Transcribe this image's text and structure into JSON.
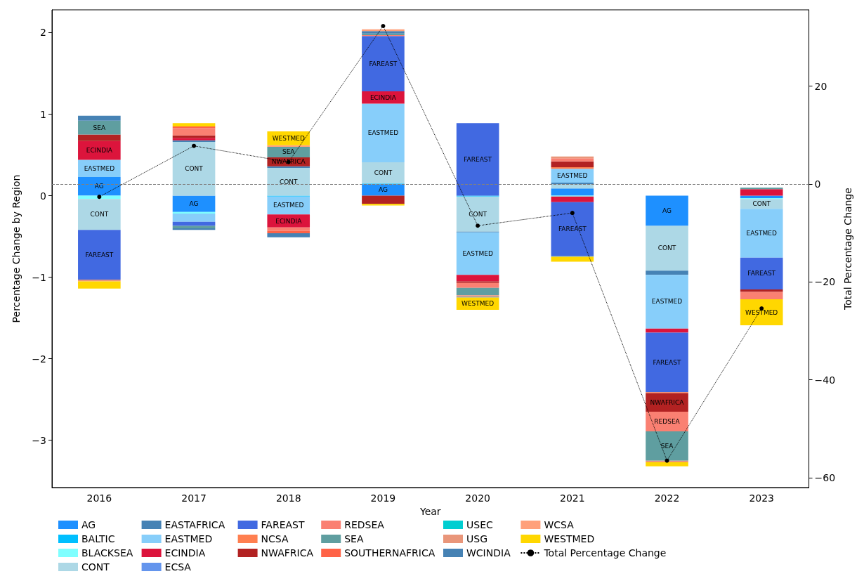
{
  "chart_data": {
    "type": "bar",
    "stacked": true,
    "xlabel": "Year",
    "ylabel": "Percentage Change by Region",
    "y2label": "Total Percentage Change",
    "categories": [
      "2016",
      "2017",
      "2018",
      "2019",
      "2020",
      "2021",
      "2022",
      "2023"
    ],
    "ylim": [
      -3.58,
      2.28
    ],
    "yticks": [
      {
        "value": -3,
        "label": "−3"
      },
      {
        "value": -2,
        "label": "−2"
      },
      {
        "value": -1,
        "label": "−1"
      },
      0,
      1,
      2
    ],
    "y2lim": [
      -62,
      35.6
    ],
    "y2ticks": [
      {
        "value": -60,
        "label": "−60"
      },
      {
        "value": -40,
        "label": "−40"
      },
      {
        "value": -20,
        "label": "−20"
      },
      0,
      20
    ],
    "grid": false,
    "legend": "bottom",
    "ref_lines": [
      {
        "axis": "y2",
        "value": 0,
        "color": "#808080",
        "line_style": "dashed"
      }
    ],
    "series": [
      {
        "name": "AG",
        "color": "#1e90ff",
        "values": [
          0.23,
          -0.2,
          null,
          0.14,
          null,
          0.09,
          -0.37,
          -0.03
        ],
        "value_labels": [
          "AG",
          "AG",
          null,
          "AG",
          null,
          null,
          "AG",
          null
        ]
      },
      {
        "name": "BALTIC",
        "color": "#00bfff",
        "values": [
          null,
          null,
          -0.01,
          0.01,
          -0.01,
          null,
          null,
          null
        ]
      },
      {
        "name": "BLACKSEA",
        "color": "#7fffff",
        "values": [
          -0.04,
          -0.02,
          null,
          null,
          null,
          -0.01,
          null,
          -0.01
        ]
      },
      {
        "name": "CONT",
        "color": "#add8e6",
        "values": [
          -0.38,
          0.66,
          0.34,
          0.26,
          -0.43,
          0.05,
          -0.55,
          -0.12
        ],
        "value_labels": [
          "CONT",
          "CONT",
          "CONT",
          "CONT",
          "CONT",
          null,
          "CONT",
          "CONT"
        ]
      },
      {
        "name": "EASTAFRICA",
        "color": "#4682b4",
        "values": [
          null,
          0.02,
          0.02,
          null,
          -0.01,
          0.02,
          -0.05,
          null
        ]
      },
      {
        "name": "EASTMED",
        "color": "#87cefa",
        "values": [
          0.21,
          -0.1,
          -0.22,
          0.72,
          -0.52,
          0.17,
          -0.66,
          -0.6
        ],
        "value_labels": [
          "EASTMED",
          null,
          "EASTMED",
          "EASTMED",
          "EASTMED",
          "EASTMED",
          "EASTMED",
          "EASTMED"
        ]
      },
      {
        "name": "ECINDIA",
        "color": "#dc143c",
        "values": [
          0.23,
          0.03,
          -0.16,
          0.15,
          -0.08,
          -0.07,
          -0.05,
          0.08
        ],
        "value_labels": [
          "ECINDIA",
          null,
          "ECINDIA",
          "ECINDIA",
          null,
          null,
          null,
          null
        ]
      },
      {
        "name": "ECSA",
        "color": "#6495ed",
        "values": [
          null,
          null,
          null,
          null,
          null,
          null,
          null,
          null
        ]
      },
      {
        "name": "FAREAST",
        "color": "#4169e1",
        "values": [
          -0.61,
          -0.05,
          null,
          0.68,
          0.89,
          -0.66,
          -0.73,
          -0.39
        ],
        "value_labels": [
          "FAREAST",
          null,
          null,
          "FAREAST",
          "FAREAST",
          "FAREAST",
          "FAREAST",
          "FAREAST"
        ]
      },
      {
        "name": "NCSA",
        "color": "#ff7f50",
        "values": [
          null,
          null,
          null,
          null,
          null,
          0.02,
          -0.01,
          null
        ]
      },
      {
        "name": "NWAFRICA",
        "color": "#b22222",
        "values": [
          0.08,
          0.03,
          0.11,
          -0.1,
          -0.02,
          0.07,
          -0.23,
          -0.03
        ],
        "value_labels": [
          null,
          null,
          "NWAFRICA",
          null,
          null,
          null,
          "NWAFRICA",
          null
        ]
      },
      {
        "name": "REDSEA",
        "color": "#fa8072",
        "values": [
          null,
          0.09,
          -0.04,
          0.01,
          -0.06,
          0.04,
          -0.24,
          -0.09
        ],
        "value_labels": [
          null,
          null,
          null,
          null,
          null,
          null,
          "REDSEA",
          null
        ]
      },
      {
        "name": "SEA",
        "color": "#5f9ea0",
        "values": [
          0.17,
          -0.03,
          0.13,
          0.02,
          -0.09,
          null,
          -0.36,
          0.02
        ],
        "value_labels": [
          "SEA",
          null,
          "SEA",
          null,
          null,
          null,
          "SEA",
          null
        ]
      },
      {
        "name": "SOUTHERNAFRICA",
        "color": "#ff6347",
        "values": [
          null,
          0.02,
          -0.03,
          null,
          null,
          null,
          null,
          null
        ]
      },
      {
        "name": "USEC",
        "color": "#00ced1",
        "values": [
          null,
          null,
          null,
          null,
          null,
          null,
          null,
          null
        ]
      },
      {
        "name": "USG",
        "color": "#e9967a",
        "values": [
          -0.02,
          null,
          null,
          null,
          -0.02,
          0.02,
          -0.02,
          null
        ]
      },
      {
        "name": "WCINDIA",
        "color": "#4682b4",
        "values": [
          0.06,
          -0.02,
          -0.05,
          0.03,
          -0.01,
          -0.01,
          null,
          null
        ]
      },
      {
        "name": "WCSA",
        "color": "#ffa07a",
        "values": [
          null,
          null,
          0.02,
          0.02,
          null,
          null,
          null,
          null
        ]
      },
      {
        "name": "WESTMED",
        "color": "#ffd700",
        "values": [
          -0.09,
          0.04,
          0.17,
          -0.02,
          -0.15,
          -0.06,
          -0.05,
          -0.32
        ],
        "value_labels": [
          null,
          null,
          "WESTMED",
          null,
          "WESTMED",
          null,
          null,
          "WESTMED"
        ]
      },
      {
        "name": "Total Percentage Change",
        "type": "line",
        "axis": "y2",
        "color": "#000000",
        "line_style": "dotted",
        "marker": "circle",
        "values": [
          -2.6,
          7.8,
          4.5,
          32.3,
          -8.5,
          -5.9,
          -56.5,
          -25.4
        ]
      }
    ]
  }
}
